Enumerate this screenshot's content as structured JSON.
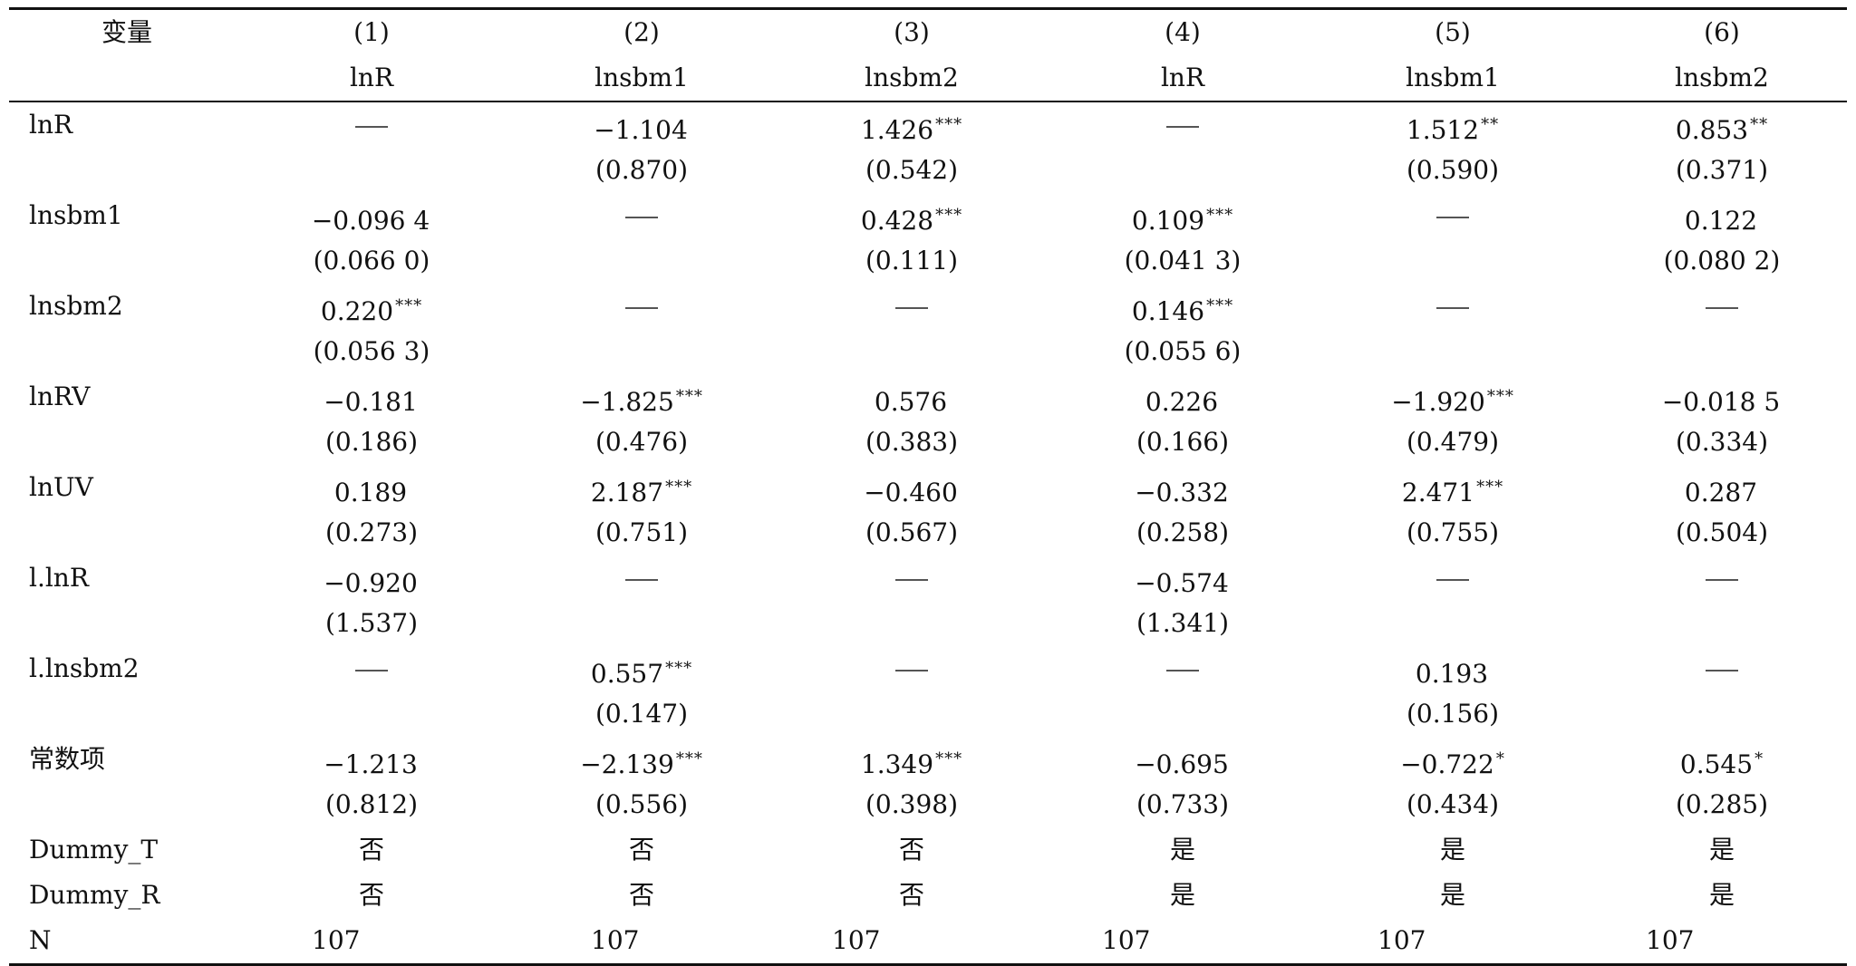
{
  "table": {
    "header": {
      "variable_label": "变量",
      "columns": [
        {
          "num": "(1)",
          "dep": "lnR"
        },
        {
          "num": "(2)",
          "dep": "lnsbm1"
        },
        {
          "num": "(3)",
          "dep": "lnsbm2"
        },
        {
          "num": "(4)",
          "dep": "lnR"
        },
        {
          "num": "(5)",
          "dep": "lnsbm1"
        },
        {
          "num": "(6)",
          "dep": "lnsbm2"
        }
      ]
    },
    "rows": [
      {
        "label": "lnR",
        "coef": [
          {
            "v": "—",
            "s": ""
          },
          {
            "v": "−1.104",
            "s": ""
          },
          {
            "v": "1.426",
            "s": "***"
          },
          {
            "v": "—",
            "s": ""
          },
          {
            "v": "1.512",
            "s": "**"
          },
          {
            "v": "0.853",
            "s": "**"
          }
        ],
        "se": [
          "",
          "(0.870)",
          "(0.542)",
          "",
          "(0.590)",
          "(0.371)"
        ]
      },
      {
        "label": "lnsbm1",
        "coef": [
          {
            "v": "−0.096 4",
            "s": ""
          },
          {
            "v": "—",
            "s": ""
          },
          {
            "v": "0.428",
            "s": "***"
          },
          {
            "v": "0.109",
            "s": "***"
          },
          {
            "v": "—",
            "s": ""
          },
          {
            "v": "0.122",
            "s": ""
          }
        ],
        "se": [
          "(0.066 0)",
          "",
          "(0.111)",
          "(0.041 3)",
          "",
          "(0.080 2)"
        ]
      },
      {
        "label": "lnsbm2",
        "coef": [
          {
            "v": "0.220",
            "s": "***"
          },
          {
            "v": "—",
            "s": ""
          },
          {
            "v": "—",
            "s": ""
          },
          {
            "v": "0.146",
            "s": "***"
          },
          {
            "v": "—",
            "s": ""
          },
          {
            "v": "—",
            "s": ""
          }
        ],
        "se": [
          "(0.056 3)",
          "",
          "",
          "(0.055 6)",
          "",
          ""
        ]
      },
      {
        "label": "lnRV",
        "coef": [
          {
            "v": "−0.181",
            "s": ""
          },
          {
            "v": "−1.825",
            "s": "***"
          },
          {
            "v": "0.576",
            "s": ""
          },
          {
            "v": "0.226",
            "s": ""
          },
          {
            "v": "−1.920",
            "s": "***"
          },
          {
            "v": "−0.018 5",
            "s": ""
          }
        ],
        "se": [
          "(0.186)",
          "(0.476)",
          "(0.383)",
          "(0.166)",
          "(0.479)",
          "(0.334)"
        ]
      },
      {
        "label": "lnUV",
        "coef": [
          {
            "v": "0.189",
            "s": ""
          },
          {
            "v": "2.187",
            "s": "***"
          },
          {
            "v": "−0.460",
            "s": ""
          },
          {
            "v": "−0.332",
            "s": ""
          },
          {
            "v": "2.471",
            "s": "***"
          },
          {
            "v": "0.287",
            "s": ""
          }
        ],
        "se": [
          "(0.273)",
          "(0.751)",
          "(0.567)",
          "(0.258)",
          "(0.755)",
          "(0.504)"
        ]
      },
      {
        "label": "l.lnR",
        "coef": [
          {
            "v": "−0.920",
            "s": ""
          },
          {
            "v": "—",
            "s": ""
          },
          {
            "v": "—",
            "s": ""
          },
          {
            "v": "−0.574",
            "s": ""
          },
          {
            "v": "—",
            "s": ""
          },
          {
            "v": "—",
            "s": ""
          }
        ],
        "se": [
          "(1.537)",
          "",
          "",
          "(1.341)",
          "",
          ""
        ]
      },
      {
        "label": "l.lnsbm2",
        "coef": [
          {
            "v": "—",
            "s": ""
          },
          {
            "v": "0.557",
            "s": "***"
          },
          {
            "v": "—",
            "s": ""
          },
          {
            "v": "—",
            "s": ""
          },
          {
            "v": "0.193",
            "s": ""
          },
          {
            "v": "—",
            "s": ""
          }
        ],
        "se": [
          "",
          "(0.147)",
          "",
          "",
          "(0.156)",
          ""
        ]
      },
      {
        "label": "常数项",
        "coef": [
          {
            "v": "−1.213",
            "s": ""
          },
          {
            "v": "−2.139",
            "s": "***"
          },
          {
            "v": "1.349",
            "s": "***"
          },
          {
            "v": "−0.695",
            "s": ""
          },
          {
            "v": "−0.722",
            "s": "*"
          },
          {
            "v": "0.545",
            "s": "*"
          }
        ],
        "se": [
          "(0.812)",
          "(0.556)",
          "(0.398)",
          "(0.733)",
          "(0.434)",
          "(0.285)"
        ]
      }
    ],
    "dummies": [
      {
        "label": "Dummy_T",
        "values": [
          "否",
          "否",
          "否",
          "是",
          "是",
          "是"
        ]
      },
      {
        "label": "Dummy_R",
        "values": [
          "否",
          "否",
          "否",
          "是",
          "是",
          "是"
        ]
      }
    ],
    "n_row": {
      "label": "N",
      "values": [
        "107",
        "107",
        "107",
        "107",
        "107",
        "107"
      ]
    }
  }
}
